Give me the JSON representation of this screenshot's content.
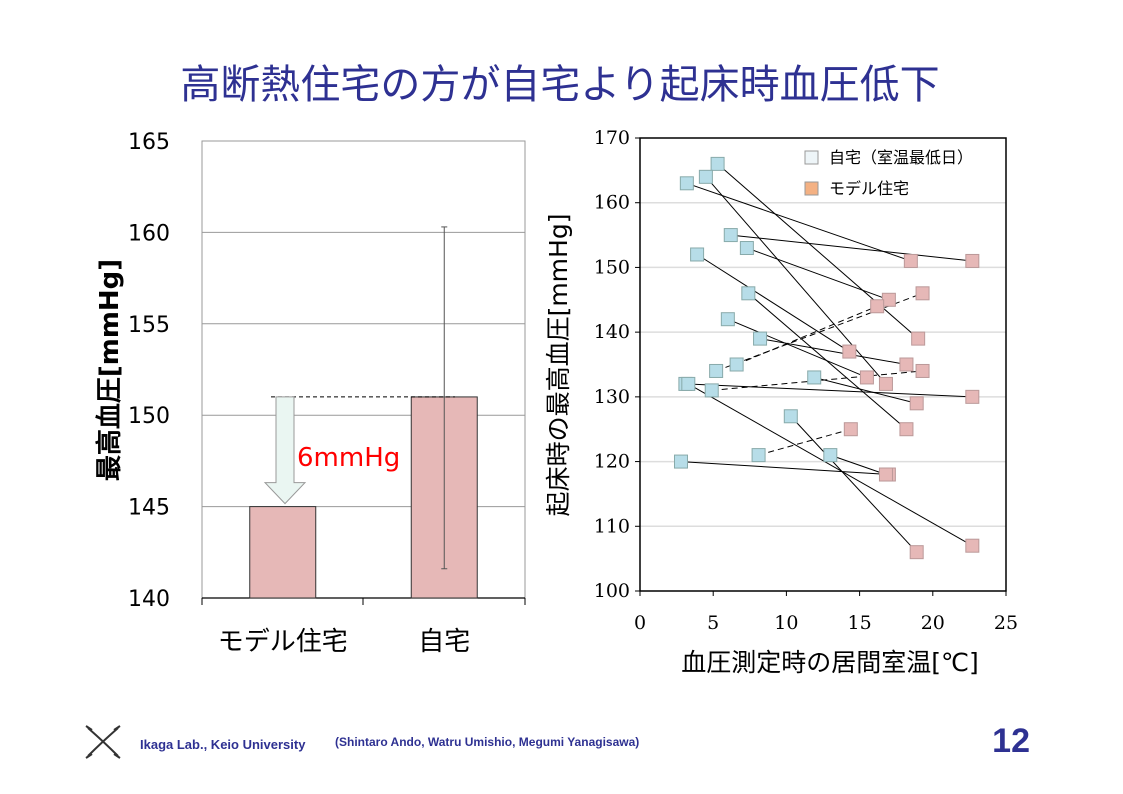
{
  "title": "高断熱住宅の方が自宅より起床時血圧低下",
  "footer": {
    "lab": "Ikaga Lab., Keio University",
    "authors": "(Shintaro Ando, Watru Umishio, Megumi Yanagisawa)",
    "page_number": "12"
  },
  "colors": {
    "title": "#2e3192",
    "bar": "#e6b8b7",
    "home_marker": "#b7dde8",
    "model_marker": "#e6b8b7",
    "legend_home": "#eef5f8",
    "legend_model": "#f4b183",
    "annotation": "#ff0000",
    "arrow_fill": "#eaf6f2"
  },
  "chart_data": [
    {
      "type": "bar",
      "title": "",
      "ylabel": "最高血圧[mmHg]",
      "xlabel": "",
      "ylim": [
        140,
        165
      ],
      "yticks": [
        "140",
        "145",
        "150",
        "155",
        "160",
        "165"
      ],
      "categories": [
        "モデル住宅",
        "自宅"
      ],
      "values": [
        145,
        151
      ],
      "error_bars": [
        null,
        [
          141.6,
          160.3
        ]
      ],
      "annotation": "6mmHg"
    },
    {
      "type": "scatter",
      "title": "",
      "xlabel": "血圧測定時の居間室温[℃]",
      "ylabel": "起床時の最高血圧[mmHg]",
      "xlim": [
        0,
        25
      ],
      "ylim": [
        100,
        170
      ],
      "xticks": [
        "0",
        "5",
        "10",
        "15",
        "20",
        "25"
      ],
      "yticks": [
        "100",
        "110",
        "120",
        "130",
        "140",
        "150",
        "160",
        "170"
      ],
      "grid": "horizontal",
      "legend": {
        "placement": "top-right",
        "entries": [
          "自宅（室温最低日）",
          "モデル住宅"
        ]
      },
      "pairs": [
        {
          "home": [
            5.3,
            166
          ],
          "model": [
            19.0,
            139
          ],
          "dashed": false
        },
        {
          "home": [
            4.5,
            164
          ],
          "model": [
            16.8,
            132
          ],
          "dashed": false
        },
        {
          "home": [
            3.2,
            163
          ],
          "model": [
            18.5,
            151
          ],
          "dashed": false
        },
        {
          "home": [
            6.2,
            155
          ],
          "model": [
            22.7,
            151
          ],
          "dashed": false
        },
        {
          "home": [
            7.3,
            153
          ],
          "model": [
            17.0,
            145
          ],
          "dashed": false
        },
        {
          "home": [
            3.9,
            152
          ],
          "model": [
            14.3,
            137
          ],
          "dashed": false
        },
        {
          "home": [
            7.4,
            146
          ],
          "model": [
            18.2,
            125
          ],
          "dashed": false
        },
        {
          "home": [
            6.0,
            142
          ],
          "model": [
            15.5,
            133
          ],
          "dashed": false
        },
        {
          "home": [
            8.2,
            139
          ],
          "model": [
            18.2,
            135
          ],
          "dashed": false
        },
        {
          "home": [
            5.2,
            134
          ],
          "model": [
            19.3,
            146
          ],
          "dashed": true
        },
        {
          "home": [
            6.6,
            135
          ],
          "model": [
            16.2,
            144
          ],
          "dashed": true
        },
        {
          "home": [
            11.9,
            133
          ],
          "model": [
            18.9,
            129
          ],
          "dashed": false
        },
        {
          "home": [
            3.1,
            132
          ],
          "model": [
            22.7,
            130
          ],
          "dashed": false
        },
        {
          "home": [
            3.3,
            132
          ],
          "model": [
            22.7,
            107
          ],
          "dashed": false
        },
        {
          "home": [
            4.9,
            131
          ],
          "model": [
            19.3,
            134
          ],
          "dashed": true
        },
        {
          "home": [
            10.3,
            127
          ],
          "model": [
            18.9,
            106
          ],
          "dashed": false
        },
        {
          "home": [
            8.1,
            121
          ],
          "model": [
            14.4,
            125
          ],
          "dashed": true
        },
        {
          "home": [
            2.8,
            120
          ],
          "model": [
            17.0,
            118
          ],
          "dashed": false
        },
        {
          "home": [
            13.0,
            121
          ],
          "model": [
            16.8,
            118
          ],
          "dashed": false
        }
      ]
    }
  ]
}
